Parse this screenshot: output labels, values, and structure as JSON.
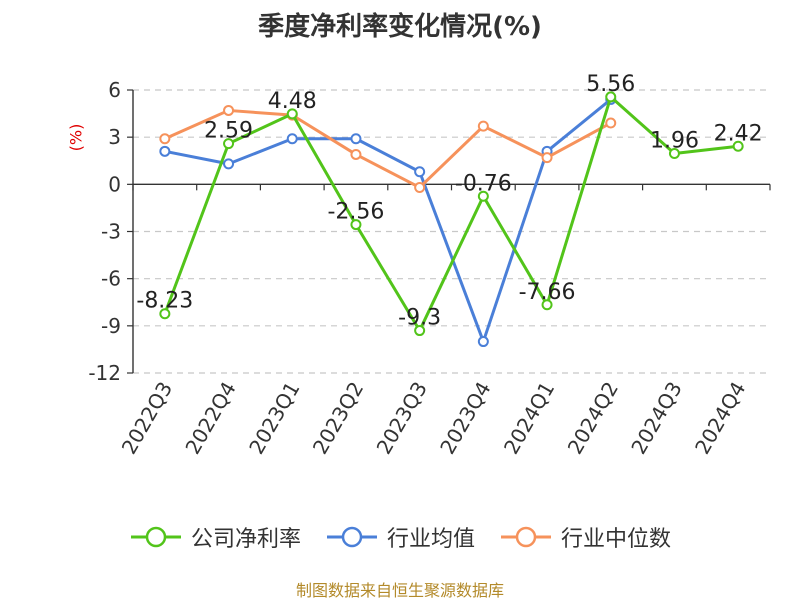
{
  "chart_data": {
    "type": "line",
    "title": "季度净利率变化情况(%)",
    "ylabel": "(%)",
    "categories": [
      "2022Q3",
      "2022Q4",
      "2023Q1",
      "2023Q2",
      "2023Q3",
      "2023Q4",
      "2024Q1",
      "2024Q2",
      "2024Q3",
      "2024Q4"
    ],
    "ylim": [
      -12,
      6
    ],
    "yticks": [
      6,
      3,
      0,
      -3,
      -6,
      -9,
      -12
    ],
    "grid": true,
    "legend_position": "bottom",
    "series": [
      {
        "name": "公司净利率",
        "color": "#52c41a",
        "values": [
          -8.23,
          2.59,
          4.48,
          -2.56,
          -9.3,
          -0.76,
          -7.66,
          5.56,
          1.96,
          2.42
        ],
        "labels": [
          "-8.23",
          "2.59",
          "4.48",
          "-2.56",
          "-9.3",
          "-0.76",
          "-7.66",
          "5.56",
          "1.96",
          "2.42"
        ]
      },
      {
        "name": "行业均值",
        "color": "#4a7fd8",
        "values": [
          2.1,
          1.3,
          2.9,
          2.9,
          0.8,
          -10.0,
          2.1,
          5.4,
          null,
          null
        ]
      },
      {
        "name": "行业中位数",
        "color": "#f6925b",
        "values": [
          2.9,
          4.7,
          4.4,
          1.9,
          -0.2,
          3.7,
          1.7,
          3.9,
          null,
          null
        ]
      }
    ]
  },
  "source": "制图数据来自恒生聚源数据库"
}
